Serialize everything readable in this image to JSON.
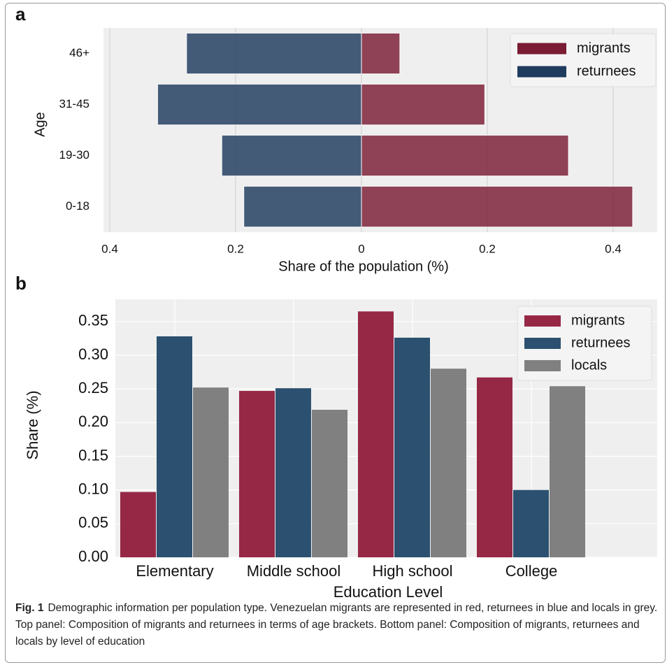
{
  "chart_data": [
    {
      "type": "pyramid",
      "title": "a",
      "xlabel": "Share of the population (%)",
      "ylabel": "Age",
      "categories": [
        "0-18",
        "19-30",
        "31-45",
        "46+"
      ],
      "series": [
        {
          "name": "migrants",
          "color": "#7a1c33",
          "values": [
            0.431,
            0.329,
            0.196,
            0.061
          ]
        },
        {
          "name": "returnees",
          "color": "#1f3b5e",
          "values": [
            -0.187,
            -0.222,
            -0.324,
            -0.278
          ]
        }
      ],
      "xlim": [
        -0.41,
        0.47
      ],
      "xticks": [
        {
          "value": -0.4,
          "label": "0.4"
        },
        {
          "value": -0.2,
          "label": "0.2"
        },
        0,
        0.2,
        0.4
      ],
      "grid": true,
      "legend": "upper right"
    },
    {
      "type": "bar",
      "title": "b",
      "xlabel": "Education Level",
      "ylabel": "Share (%)",
      "categories": [
        "Elementary",
        "Middle school",
        "High school",
        "College"
      ],
      "series": [
        {
          "name": "migrants",
          "color": "#962846",
          "values": [
            0.097,
            0.247,
            0.365,
            0.267
          ]
        },
        {
          "name": "returnees",
          "color": "#2c5170",
          "values": [
            0.328,
            0.251,
            0.326,
            0.1
          ]
        },
        {
          "name": "locals",
          "color": "#808080",
          "values": [
            0.252,
            0.219,
            0.28,
            0.254
          ]
        }
      ],
      "ylim": [
        0,
        0.383
      ],
      "yticks": [
        {
          "value": 0,
          "label": "0.00"
        },
        0.05,
        {
          "value": 0.1,
          "label": "0.10"
        },
        0.15,
        {
          "value": 0.2,
          "label": "0.20"
        },
        0.25,
        {
          "value": 0.3,
          "label": "0.30"
        },
        0.35
      ],
      "grid": true,
      "legend": "upper right"
    }
  ],
  "caption": {
    "label": "Fig. 1",
    "text": "Demographic information per population type. Venezuelan migrants are represented in red, returnees in blue and locals in grey. Top panel: Composition of migrants and returnees in terms of age brackets. Bottom panel: Composition of migrants, returnees and locals by level of education"
  }
}
